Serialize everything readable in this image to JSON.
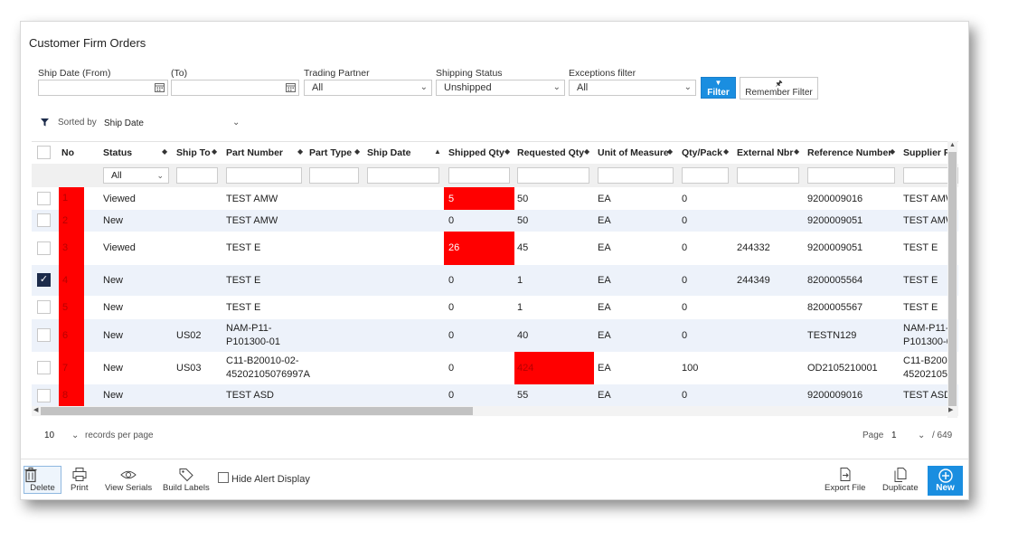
{
  "title": "Customer Firm Orders",
  "filters": {
    "ship_date_from_label": "Ship Date (From)",
    "ship_date_to_label": "(To)",
    "trading_partner_label": "Trading Partner",
    "trading_partner_value": "All",
    "shipping_status_label": "Shipping Status",
    "shipping_status_value": "Unshipped",
    "exceptions_label": "Exceptions filter",
    "exceptions_value": "All",
    "filter_button": "Filter",
    "remember_button": "Remember Filter"
  },
  "sort": {
    "label": "Sorted by",
    "value": "Ship Date"
  },
  "table": {
    "columns": {
      "no": "No",
      "status": "Status",
      "ship_to": "Ship To",
      "part_number": "Part Number",
      "part_type": "Part Type",
      "ship_date": "Ship Date",
      "shipped_qty": "Shipped Qty",
      "requested_qty": "Requested Qty",
      "uom": "Unit of Measure",
      "qty_pack": "Qty/Pack",
      "external_nbr": "External Nbr",
      "reference_number": "Reference Number",
      "supplier_part": "Supplier P"
    },
    "status_filter": "All",
    "rows": [
      {
        "no": "1",
        "status": "Viewed",
        "ship_to": "",
        "part1": "TEST AMW",
        "part2": "",
        "shipped": "5",
        "requested": "50",
        "uom": "EA",
        "qty_pack": "0",
        "external": "",
        "reference": "9200009016",
        "sup1": "TEST AMW",
        "sup2": ""
      },
      {
        "no": "2",
        "status": "New",
        "ship_to": "",
        "part1": "TEST AMW",
        "part2": "",
        "shipped": "0",
        "requested": "50",
        "uom": "EA",
        "qty_pack": "0",
        "external": "",
        "reference": "9200009051",
        "sup1": "TEST AMW",
        "sup2": ""
      },
      {
        "no": "3",
        "status": "Viewed",
        "ship_to": "",
        "part1": "TEST E",
        "part2": "",
        "shipped": "26",
        "requested": "45",
        "uom": "EA",
        "qty_pack": "0",
        "external": "244332",
        "reference": "9200009051",
        "sup1": "TEST E",
        "sup2": ""
      },
      {
        "no": "4",
        "status": "New",
        "ship_to": "",
        "part1": "TEST E",
        "part2": "",
        "shipped": "0",
        "requested": "1",
        "uom": "EA",
        "qty_pack": "0",
        "external": "244349",
        "reference": "8200005564",
        "sup1": "TEST E",
        "sup2": ""
      },
      {
        "no": "5",
        "status": "New",
        "ship_to": "",
        "part1": "TEST E",
        "part2": "",
        "shipped": "0",
        "requested": "1",
        "uom": "EA",
        "qty_pack": "0",
        "external": "",
        "reference": "8200005567",
        "sup1": "TEST E",
        "sup2": ""
      },
      {
        "no": "6",
        "status": "New",
        "ship_to": "US02",
        "part1": "NAM-P11-",
        "part2": "P101300-01",
        "shipped": "0",
        "requested": "40",
        "uom": "EA",
        "qty_pack": "0",
        "external": "",
        "reference": "TESTN129",
        "sup1": "NAM-P11-",
        "sup2": "P101300-0"
      },
      {
        "no": "7",
        "status": "New",
        "ship_to": "US03",
        "part1": "C11-B20010-02-",
        "part2": "45202105076997A",
        "shipped": "0",
        "requested": "424",
        "uom": "EA",
        "qty_pack": "100",
        "external": "",
        "reference": "OD2105210001",
        "sup1": "C11-B2001",
        "sup2": "45202105"
      },
      {
        "no": "8",
        "status": "New",
        "ship_to": "",
        "part1": "TEST ASD",
        "part2": "",
        "shipped": "0",
        "requested": "55",
        "uom": "EA",
        "qty_pack": "0",
        "external": "",
        "reference": "9200009016",
        "sup1": "TEST ASD",
        "sup2": ""
      }
    ]
  },
  "pager": {
    "per_page": "10",
    "per_page_label": "records per page",
    "page_label": "Page",
    "page": "1",
    "total": "/ 649"
  },
  "toolbar": {
    "delete": "Delete",
    "print": "Print",
    "view_serials": "View Serials",
    "build_labels": "Build Labels",
    "hide_alert": "Hide Alert Display",
    "export": "Export File",
    "duplicate": "Duplicate",
    "new": "New"
  },
  "colors": {
    "alert": "#ff0000",
    "accent": "#1a8ee0",
    "alt_row": "#edf2fa"
  }
}
